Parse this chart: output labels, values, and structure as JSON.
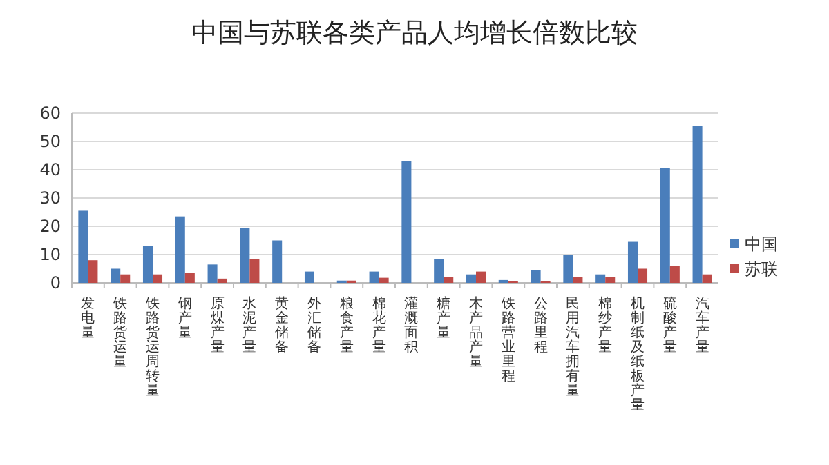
{
  "chart_data": {
    "type": "bar",
    "title": "中国与苏联各类产品人均增长倍数比较",
    "categories": [
      "发电量",
      "铁路货运量",
      "铁路货运周转量",
      "钢产量",
      "原煤产量",
      "水泥产量",
      "黄金储备",
      "外汇储备",
      "粮食产量",
      "棉花产量",
      "灌溉面积",
      "糖产量",
      "木产品产量",
      "铁路营业里程",
      "公路里程",
      "民用汽车拥有量",
      "棉纱产量",
      "机制纸及纸板产量",
      "硫酸产量",
      "汽车产量"
    ],
    "series": [
      {
        "name": "中国",
        "color": "#4a7ebb",
        "values": [
          25.5,
          5,
          13,
          23.5,
          6.5,
          19.5,
          15,
          4,
          0.8,
          4,
          43,
          8.5,
          3,
          1,
          4.5,
          10,
          3,
          14.5,
          40.5,
          55.5
        ]
      },
      {
        "name": "苏联",
        "color": "#be4b48",
        "values": [
          8,
          3,
          3,
          3.5,
          1.5,
          8.5,
          null,
          null,
          0.8,
          1.8,
          null,
          2,
          4,
          0.5,
          0.5,
          2,
          2,
          5,
          6,
          3
        ]
      }
    ],
    "ylim": [
      0,
      60
    ],
    "yticks": [
      0,
      10,
      20,
      30,
      40,
      50,
      60
    ],
    "grid": "y",
    "legend": "right"
  }
}
